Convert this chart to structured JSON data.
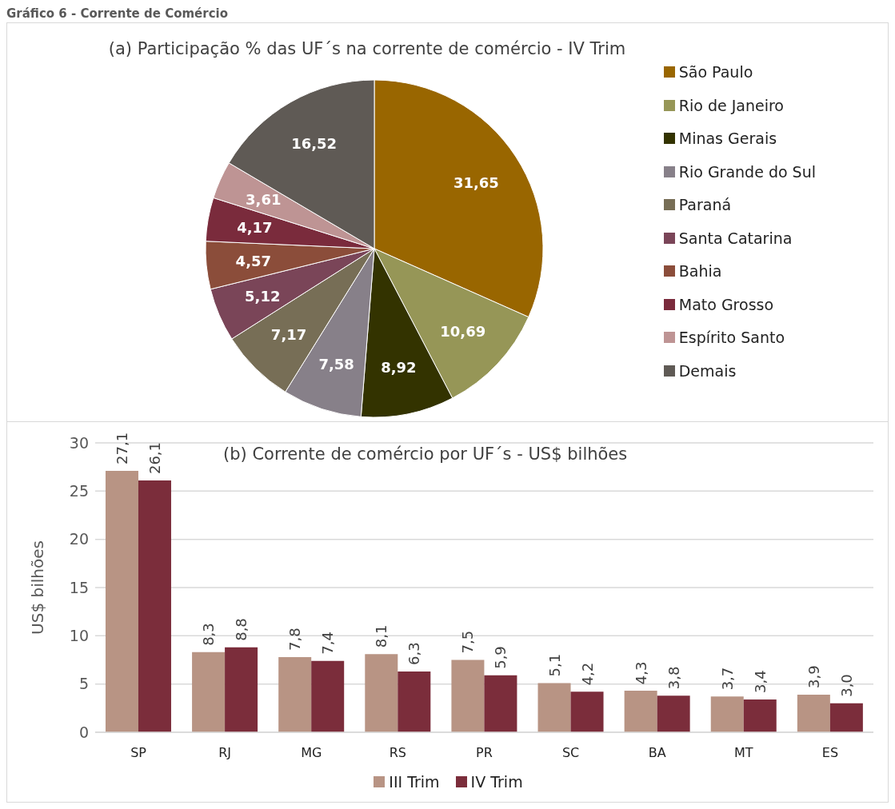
{
  "chart_data": [
    {
      "type": "pie",
      "title": "(a) Participação % das UF´s na corrente de comércio - IV Trim",
      "annotations": [
        "Gráfico 6 - Corrente de Comércio"
      ],
      "categories": [
        "São Paulo",
        "Rio de Janeiro",
        "Minas Gerais",
        "Rio Grande do Sul",
        "Paraná",
        "Santa Catarina",
        "Bahia",
        "Mato Grosso",
        "Espírito Santo",
        "Demais"
      ],
      "values": [
        31.65,
        10.69,
        8.92,
        7.58,
        7.17,
        5.12,
        4.57,
        4.17,
        3.61,
        16.52
      ],
      "colors": [
        "#996600",
        "#969657",
        "#333300",
        "#878089",
        "#776e56",
        "#7a4558",
        "#8b4d3a",
        "#7a2b3c",
        "#be9494",
        "#5f5a55"
      ],
      "value_labels": [
        "31,65",
        "10,69",
        "8,92",
        "7,58",
        "7,17",
        "5,12",
        "4,57",
        "4,17",
        "3,61",
        "16,52"
      ],
      "legend": "right"
    },
    {
      "type": "bar",
      "title": "(b) Corrente de comércio por UF´s - US$ bilhões",
      "ylabel": "US$ bilhões",
      "categories": [
        "SP",
        "RJ",
        "MG",
        "RS",
        "PR",
        "SC",
        "BA",
        "MT",
        "ES"
      ],
      "series": [
        {
          "name": "III Trim",
          "color": "#b89484",
          "values": [
            27.1,
            8.3,
            7.8,
            8.1,
            7.5,
            5.1,
            4.3,
            3.7,
            3.9
          ],
          "value_labels": [
            "27,1",
            "8,3",
            "7,8",
            "8,1",
            "7,5",
            "5,1",
            "4,3",
            "3,7",
            "3,9"
          ]
        },
        {
          "name": "IV Trim",
          "color": "#7b2d3b",
          "values": [
            26.1,
            8.8,
            7.4,
            6.3,
            5.9,
            4.2,
            3.8,
            3.4,
            3.0
          ],
          "value_labels": [
            "26,1",
            "8,8",
            "7,4",
            "6,3",
            "5,9",
            "4,2",
            "3,8",
            "3,4",
            "3,0"
          ]
        }
      ],
      "ylim": [
        0,
        30
      ],
      "yticks": [
        0,
        5,
        10,
        15,
        20,
        25,
        30
      ],
      "grid": "y",
      "legend": "bottom"
    }
  ]
}
